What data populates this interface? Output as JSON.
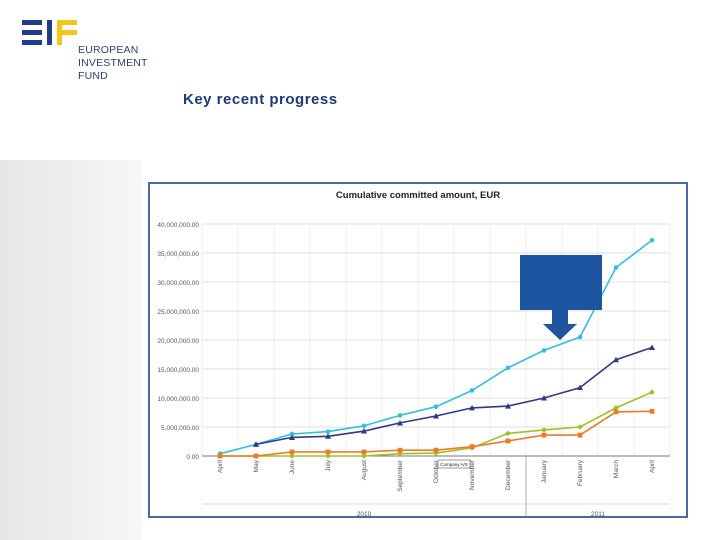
{
  "logo": {
    "lines": [
      "EUROPEAN",
      "INVESTMENT",
      "FUND"
    ],
    "colors": {
      "blue": "#1f3d8a",
      "yellow": "#f5c518"
    }
  },
  "slide": {
    "title": "Key recent progress"
  },
  "callout": {
    "color": "#1d55a0"
  },
  "chart_data": {
    "type": "line",
    "title": "Cumulative committed amount, EUR",
    "xlabel": "",
    "ylabel": "",
    "categories": [
      "April",
      "May",
      "June",
      "July",
      "August",
      "September",
      "October",
      "November",
      "December",
      "January",
      "February",
      "March",
      "April"
    ],
    "year_labels": [
      "2010",
      "2011"
    ],
    "y_ticks": [
      "40,000,000.00",
      "35,000,000.00",
      "30,000,000.00",
      "25,000,000.00",
      "20,000,000.00",
      "15,000,000.00",
      "10,000,000.00",
      "5,000,000.00",
      "0.00"
    ],
    "ylim": [
      0,
      40000000
    ],
    "grid": true,
    "annotation": "Company A/S",
    "series": [
      {
        "color": "#33bfe0",
        "marker": "circle",
        "values": [
          400000,
          2000000,
          3800000,
          4200000,
          5200000,
          7000000,
          8500000,
          11300000,
          15200000,
          18200000,
          20500000,
          32500000,
          37200000
        ]
      },
      {
        "color": "#2e3a86",
        "marker": "triangle",
        "values": [
          null,
          2000000,
          3200000,
          3400000,
          4300000,
          5700000,
          6900000,
          8300000,
          8600000,
          10000000,
          11800000,
          16600000,
          18700000
        ]
      },
      {
        "color": "#9ac51e",
        "marker": "diamond",
        "values": [
          0,
          0,
          0,
          0,
          0,
          400000,
          500000,
          1400000,
          3900000,
          4500000,
          5000000,
          8300000,
          11000000
        ]
      },
      {
        "color": "#f07828",
        "marker": "square",
        "values": [
          0,
          0,
          700000,
          700000,
          700000,
          1000000,
          1000000,
          1600000,
          2600000,
          3600000,
          3600000,
          7600000,
          7700000
        ]
      }
    ]
  }
}
